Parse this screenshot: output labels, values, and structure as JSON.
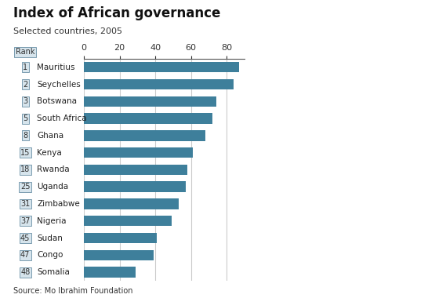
{
  "chart_data": {
    "type": "bar",
    "orientation": "horizontal",
    "title": "Index of African governance",
    "subtitle": "Selected countries, 2005",
    "rank_header": "Rank",
    "categories": [
      "Mauritius",
      "Seychelles",
      "Botswana",
      "South Africa",
      "Ghana",
      "Kenya",
      "Rwanda",
      "Uganda",
      "Zimbabwe",
      "Nigeria",
      "Sudan",
      "Congo",
      "Somalia"
    ],
    "ranks": [
      1,
      2,
      3,
      5,
      8,
      15,
      18,
      25,
      31,
      37,
      45,
      47,
      48
    ],
    "values": [
      87,
      84,
      74,
      72,
      68,
      61,
      58,
      57,
      53,
      49,
      41,
      39,
      29
    ],
    "color": "#3e7f9b",
    "xlim": [
      0,
      90
    ],
    "xticks": [
      0,
      20,
      40,
      60,
      80
    ],
    "grid": true,
    "source": "Source: Mo Ibrahim Foundation"
  }
}
